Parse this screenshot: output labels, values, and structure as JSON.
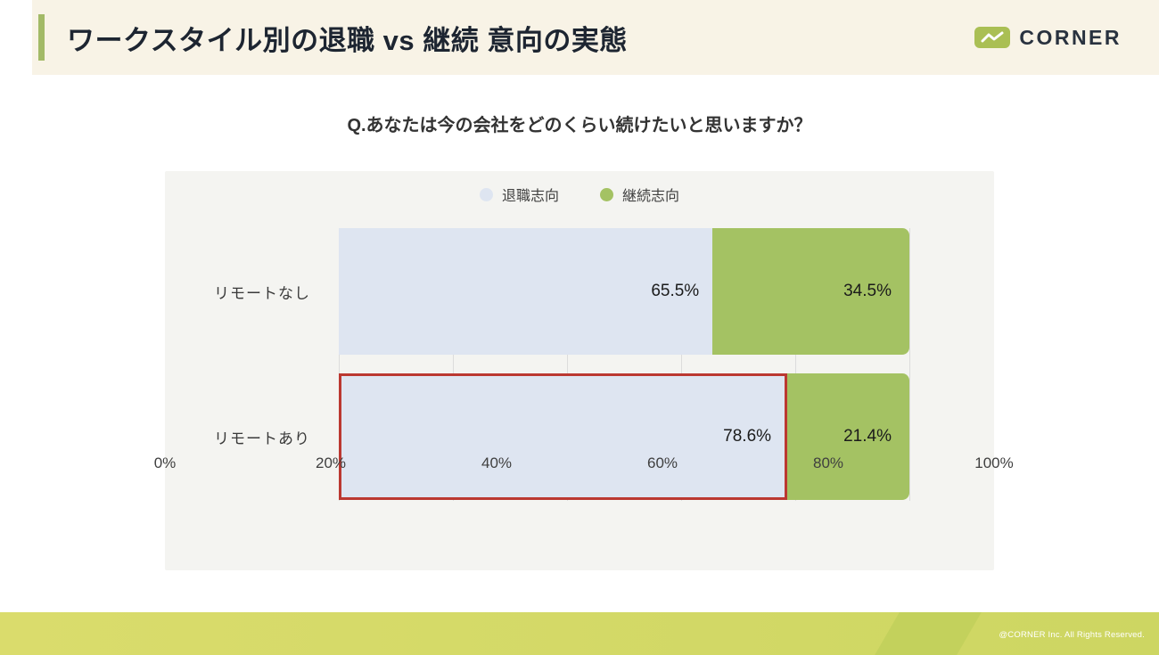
{
  "header": {
    "title": "ワークスタイル別の退職 vs 継続 意向の実態",
    "logo_text": "CORNER",
    "accent_color": "#a3ba67",
    "background": "#f8f3e6"
  },
  "question": "Q.あなたは今の会社をどのくらい続けたいと思いますか？",
  "chart_data": {
    "type": "bar",
    "orientation": "horizontal",
    "stacked": true,
    "title": "ワークスタイル別の退職 vs 継続 意向の実態",
    "categories": [
      "リモートなし",
      "リモートあり"
    ],
    "series": [
      {
        "name": "退職志向",
        "color": "#dee5f1",
        "values": [
          65.5,
          78.6
        ]
      },
      {
        "name": "継続志向",
        "color": "#a4c263",
        "values": [
          34.5,
          21.4
        ]
      }
    ],
    "data_labels": [
      [
        "65.5%",
        "34.5%"
      ],
      [
        "78.6%",
        "21.4%"
      ]
    ],
    "x_ticks": [
      "0%",
      "20%",
      "40%",
      "60%",
      "80%",
      "100%"
    ],
    "xlim": [
      0,
      100
    ],
    "legend_position": "top",
    "grid": true,
    "highlight": {
      "category_index": 1,
      "series_index": 0,
      "border_color": "#bb3831"
    },
    "panel_background": "#f4f4f1"
  },
  "footer": {
    "copyright": "@CORNER Inc. All Rights Reserved."
  }
}
